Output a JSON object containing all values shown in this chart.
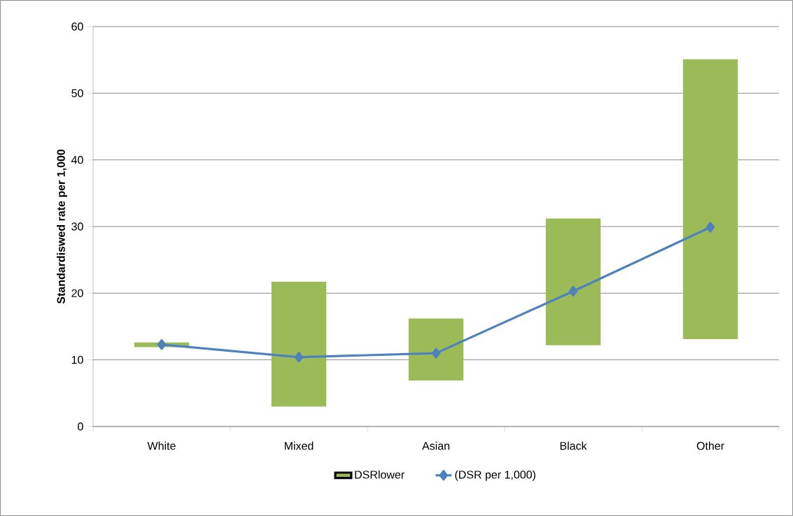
{
  "chart_data": {
    "type": "bar",
    "ylabel": "Standardiswed rate per 1,000",
    "categories": [
      "White",
      "Mixed",
      "Asian",
      "Black",
      "Other"
    ],
    "series": [
      {
        "name": "DSRlower",
        "color": "#9bbb59",
        "base": [
          11.9,
          3.0,
          6.9,
          12.2,
          13.1
        ],
        "values": [
          0.7,
          18.7,
          9.3,
          19.0,
          42.0
        ]
      },
      {
        "name": "(DSR per 1,000)",
        "type": "line",
        "color": "#4f81bd",
        "values": [
          12.3,
          10.4,
          11.0,
          20.3,
          29.9
        ],
        "marker": "diamond",
        "line_style": "solid"
      }
    ],
    "ylim": [
      0,
      60
    ],
    "yticks": [
      0,
      10,
      20,
      30,
      40,
      50,
      60
    ],
    "grid": "y",
    "legend": "bottom"
  }
}
